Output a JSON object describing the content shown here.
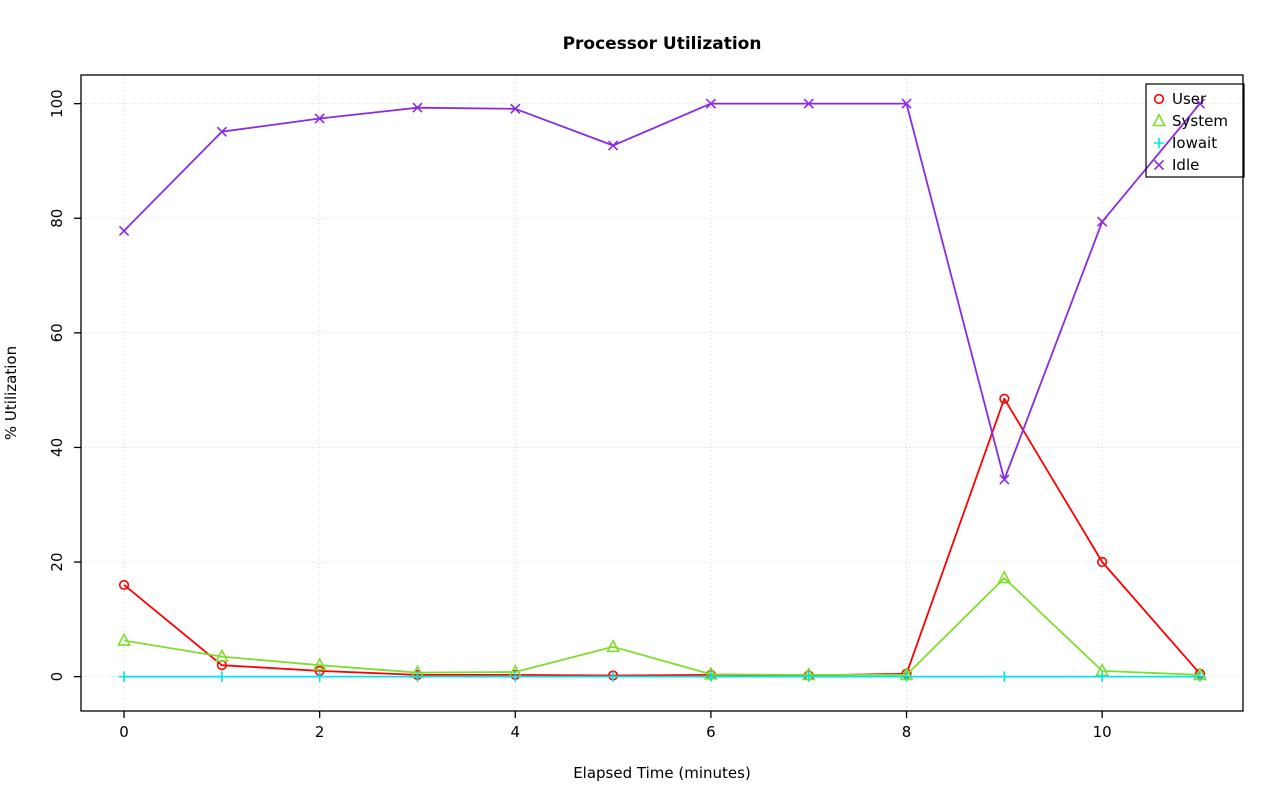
{
  "chart_data": {
    "type": "line",
    "title": "Processor Utilization",
    "xlabel": "Elapsed Time (minutes)",
    "ylabel": "% Utilization",
    "x": [
      0,
      1,
      2,
      3,
      4,
      5,
      6,
      7,
      8,
      9,
      10,
      11
    ],
    "series": [
      {
        "name": "User",
        "color": "#ff0000",
        "marker": "circle",
        "values": [
          16,
          2,
          1,
          0.3,
          0.3,
          0.2,
          0.3,
          0.2,
          0.5,
          48.5,
          20,
          0.5
        ]
      },
      {
        "name": "System",
        "color": "#7dde2d",
        "marker": "triangle",
        "values": [
          6.3,
          3.5,
          2,
          0.7,
          0.8,
          5.2,
          0.4,
          0.3,
          0.3,
          17.2,
          1,
          0.3
        ]
      },
      {
        "name": "Iowait",
        "color": "#00e5e5",
        "marker": "plus",
        "values": [
          0,
          0,
          0,
          0,
          0,
          0,
          0,
          0,
          0,
          0,
          0,
          0
        ]
      },
      {
        "name": "Idle",
        "color": "#8a2be2",
        "marker": "x",
        "values": [
          77.8,
          95.1,
          97.4,
          99.3,
          99.1,
          92.7,
          100,
          100,
          100,
          34.4,
          79.4,
          100
        ]
      }
    ],
    "xticks": [
      0,
      2,
      4,
      6,
      8,
      10
    ],
    "yticks": [
      0,
      20,
      40,
      60,
      80,
      100
    ],
    "xlim": [
      -0.44,
      11.44
    ],
    "ylim": [
      -6,
      105
    ],
    "grid": true,
    "grid_color": "#d3d3d3",
    "axis_color": "#000000",
    "legend_position": "top-right",
    "legend_labels": [
      "User",
      "System",
      "Iowait",
      "Idle"
    ]
  }
}
